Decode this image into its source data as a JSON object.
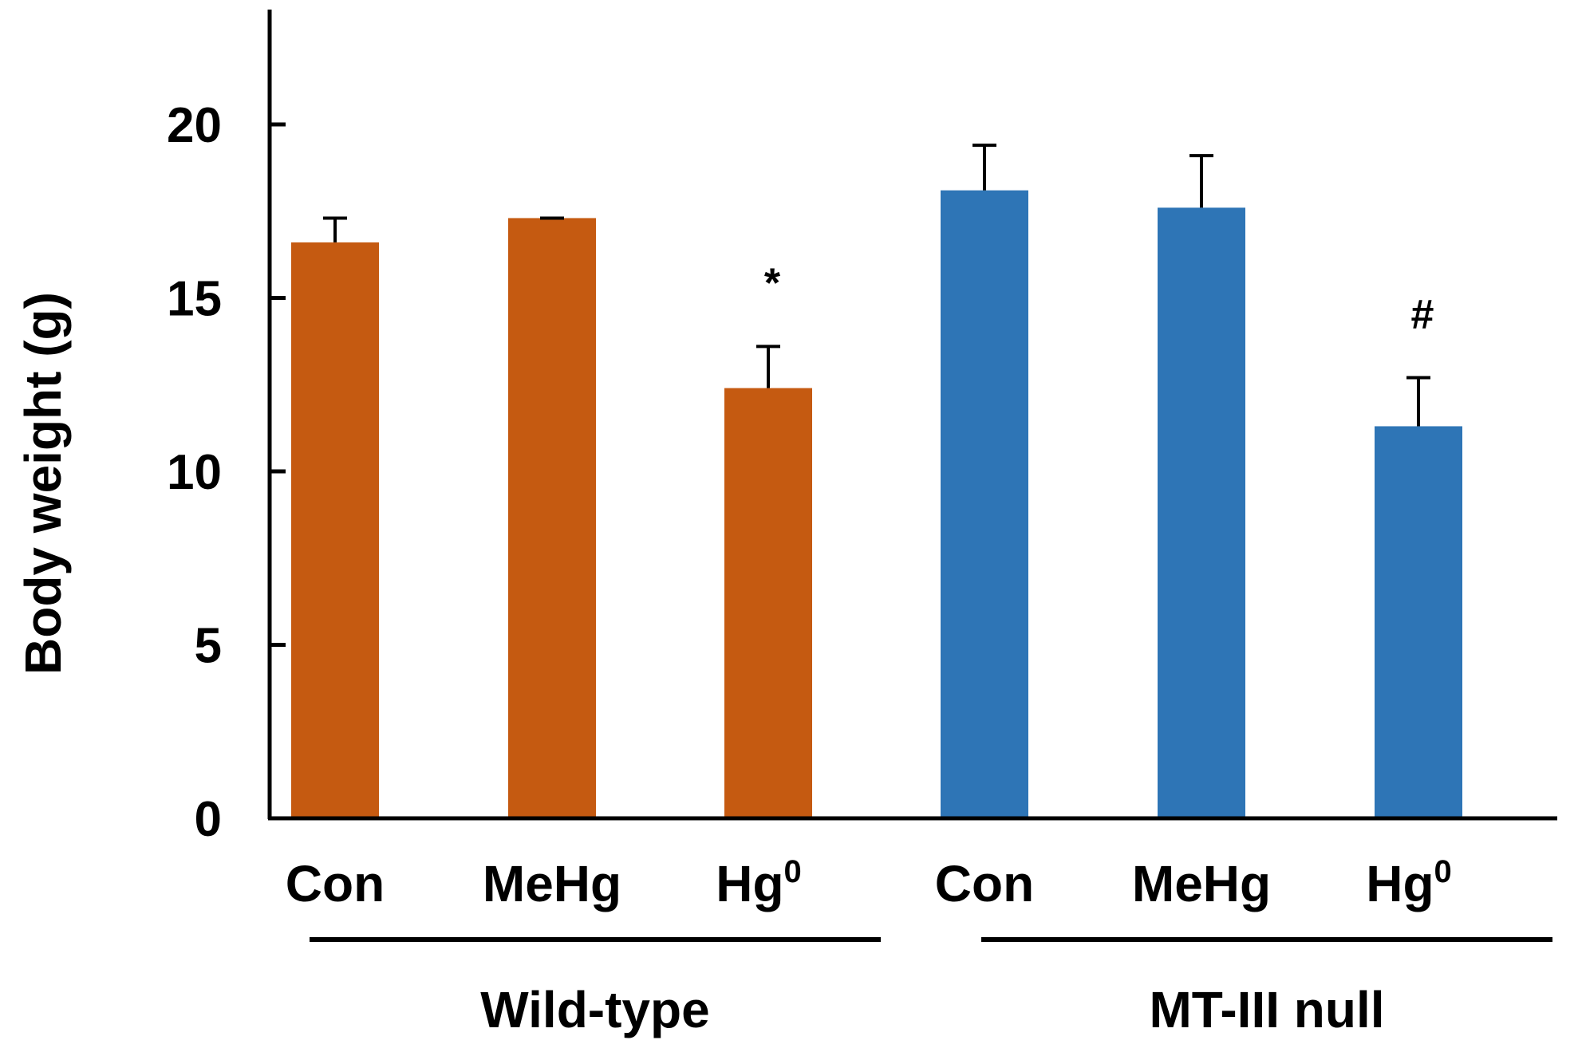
{
  "chart_data": {
    "type": "bar",
    "title": "",
    "xlabel": "",
    "ylabel": "Body weight (g)",
    "ylim": [
      0,
      20
    ],
    "yticks": [
      "0",
      "5",
      "10",
      "15",
      "20"
    ],
    "grid": false,
    "legend": "none",
    "groups": [
      {
        "label": "Wild-type",
        "color": "#C55A11",
        "bars": [
          {
            "category": "Con",
            "superscript": "",
            "value": 16.6,
            "error": 0.7,
            "annotation": ""
          },
          {
            "category": "MeHg",
            "superscript": "",
            "value": 17.3,
            "error": 0.0,
            "annotation": ""
          },
          {
            "category": "Hg",
            "superscript": "0",
            "value": 12.4,
            "error": 1.2,
            "annotation": "*"
          }
        ]
      },
      {
        "label": "MT-III null",
        "color": "#2E75B6",
        "bars": [
          {
            "category": "Con",
            "superscript": "",
            "value": 18.1,
            "error": 1.3,
            "annotation": ""
          },
          {
            "category": "MeHg",
            "superscript": "",
            "value": 17.6,
            "error": 1.5,
            "annotation": ""
          },
          {
            "category": "Hg",
            "superscript": "0",
            "value": 11.3,
            "error": 1.4,
            "annotation": "#"
          }
        ]
      }
    ]
  }
}
